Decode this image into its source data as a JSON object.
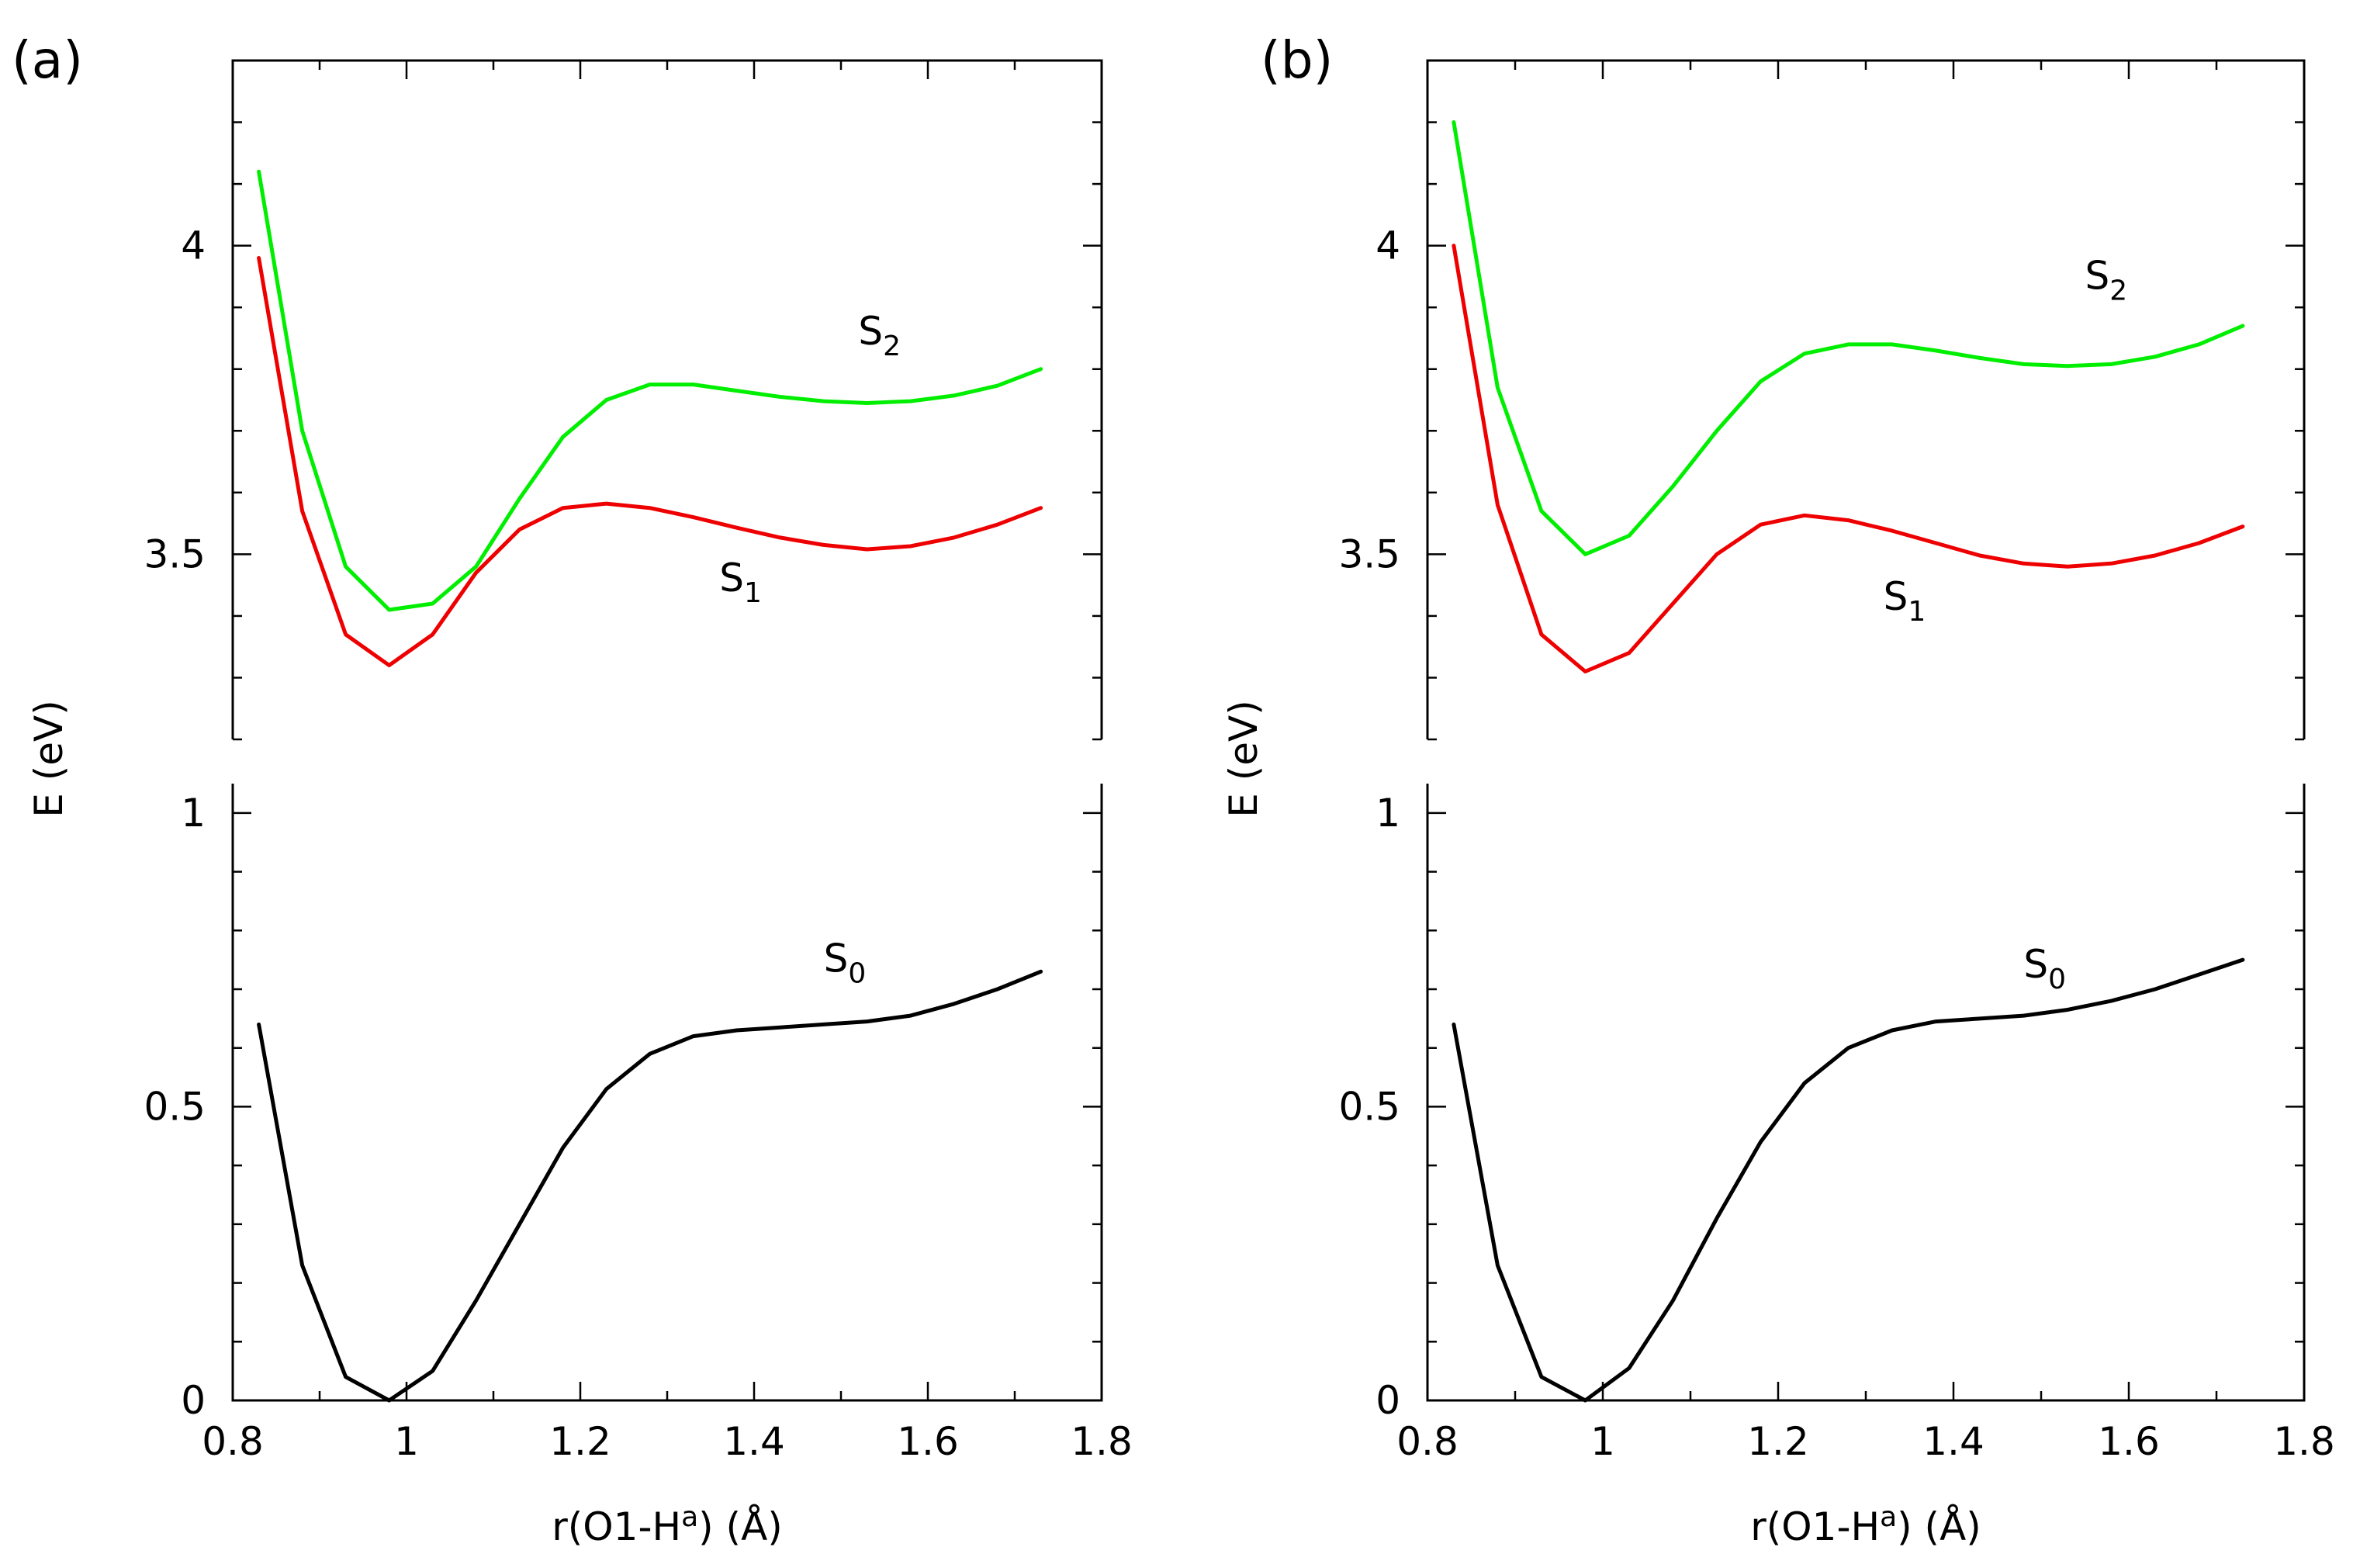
{
  "chart_data": [
    {
      "type": "line",
      "panel_label": "(a)",
      "xlabel_main": "r(O1-H",
      "xlabel_sup": "a",
      "xlabel_tail": ") (Å)",
      "ylabel": "E (eV)",
      "xlim": [
        0.8,
        1.8
      ],
      "x_ticks": [
        "0.8",
        "1",
        "1.2",
        "1.4",
        "1.6",
        "1.8"
      ],
      "broken_y_axis": true,
      "upper_ylim": [
        3.2,
        4.3
      ],
      "upper_y_ticks": [
        "3.5",
        "4"
      ],
      "lower_ylim": [
        0,
        1.05
      ],
      "lower_y_ticks": [
        "0",
        "0.5",
        "1"
      ],
      "x": [
        0.83,
        0.88,
        0.93,
        0.98,
        1.03,
        1.08,
        1.13,
        1.18,
        1.23,
        1.28,
        1.33,
        1.38,
        1.43,
        1.48,
        1.53,
        1.58,
        1.63,
        1.68,
        1.73
      ],
      "series": [
        {
          "name": "S2",
          "label_main": "S",
          "label_sub": "2",
          "color": "#00ee00",
          "axis": "upper",
          "values": [
            4.12,
            3.7,
            3.48,
            3.41,
            3.42,
            3.48,
            3.59,
            3.69,
            3.75,
            3.775,
            3.775,
            3.765,
            3.755,
            3.748,
            3.745,
            3.748,
            3.757,
            3.773,
            3.8
          ],
          "label_x": 1.52,
          "label_y": 3.84
        },
        {
          "name": "S1",
          "label_main": "S",
          "label_sub": "1",
          "color": "#ee0000",
          "axis": "upper",
          "values": [
            3.98,
            3.57,
            3.37,
            3.32,
            3.37,
            3.47,
            3.54,
            3.575,
            3.582,
            3.575,
            3.56,
            3.543,
            3.527,
            3.515,
            3.508,
            3.513,
            3.527,
            3.548,
            3.575
          ],
          "label_x": 1.36,
          "label_y": 3.44
        },
        {
          "name": "S0",
          "label_main": "S",
          "label_sub": "0",
          "color": "#000000",
          "axis": "lower",
          "values": [
            0.64,
            0.23,
            0.04,
            0.0,
            0.05,
            0.17,
            0.3,
            0.43,
            0.53,
            0.59,
            0.62,
            0.63,
            0.635,
            0.64,
            0.645,
            0.655,
            0.675,
            0.7,
            0.73
          ],
          "label_x": 1.48,
          "label_y": 0.73
        }
      ]
    },
    {
      "type": "line",
      "panel_label": "(b)",
      "xlabel_main": "r(O1-H",
      "xlabel_sup": "a",
      "xlabel_tail": ") (Å)",
      "ylabel": "E (eV)",
      "xlim": [
        0.8,
        1.8
      ],
      "x_ticks": [
        "0.8",
        "1",
        "1.2",
        "1.4",
        "1.6",
        "1.8"
      ],
      "broken_y_axis": true,
      "upper_ylim": [
        3.2,
        4.3
      ],
      "upper_y_ticks": [
        "3.5",
        "4"
      ],
      "lower_ylim": [
        0,
        1.05
      ],
      "lower_y_ticks": [
        "0",
        "0.5",
        "1"
      ],
      "x": [
        0.83,
        0.88,
        0.93,
        0.98,
        1.03,
        1.08,
        1.13,
        1.18,
        1.23,
        1.28,
        1.33,
        1.38,
        1.43,
        1.48,
        1.53,
        1.58,
        1.63,
        1.68,
        1.73
      ],
      "series": [
        {
          "name": "S2",
          "label_main": "S",
          "label_sub": "2",
          "color": "#00ee00",
          "axis": "upper",
          "values": [
            4.2,
            3.77,
            3.57,
            3.5,
            3.53,
            3.61,
            3.7,
            3.78,
            3.825,
            3.84,
            3.84,
            3.83,
            3.818,
            3.808,
            3.805,
            3.808,
            3.82,
            3.84,
            3.87
          ],
          "label_x": 1.55,
          "label_y": 3.93
        },
        {
          "name": "S1",
          "label_main": "S",
          "label_sub": "1",
          "color": "#ee0000",
          "axis": "upper",
          "values": [
            4.0,
            3.58,
            3.37,
            3.31,
            3.34,
            3.42,
            3.5,
            3.548,
            3.563,
            3.555,
            3.538,
            3.518,
            3.498,
            3.485,
            3.48,
            3.485,
            3.498,
            3.518,
            3.545
          ],
          "label_x": 1.32,
          "label_y": 3.41
        },
        {
          "name": "S0",
          "label_main": "S",
          "label_sub": "0",
          "color": "#000000",
          "axis": "lower",
          "values": [
            0.64,
            0.23,
            0.04,
            0.0,
            0.055,
            0.17,
            0.31,
            0.44,
            0.54,
            0.6,
            0.63,
            0.645,
            0.65,
            0.655,
            0.665,
            0.68,
            0.7,
            0.725,
            0.75
          ],
          "label_x": 1.48,
          "label_y": 0.72
        }
      ]
    }
  ]
}
